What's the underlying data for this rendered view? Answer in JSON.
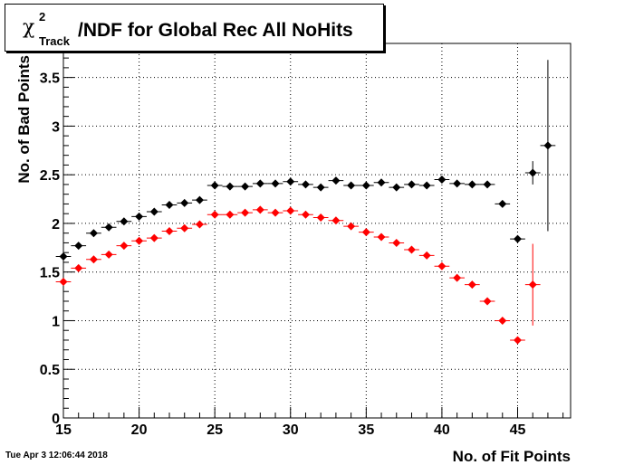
{
  "title": {
    "chi_symbol": "χ",
    "superscript": "2",
    "subscript": "Track",
    "text": "/NDF for Global Rec All NoHits"
  },
  "timestamp": "Tue Apr  3 12:06:44 2018",
  "chart_data": {
    "type": "scatter",
    "xlabel": "No. of Fit Points",
    "ylabel": "No. of Bad Points",
    "xlim": [
      15,
      48.5
    ],
    "ylim": [
      0,
      3.85
    ],
    "x_ticks": [
      15,
      20,
      25,
      30,
      35,
      40,
      45
    ],
    "y_ticks": [
      0,
      0.5,
      1,
      1.5,
      2,
      2.5,
      3,
      3.5
    ],
    "grid": true,
    "series": [
      {
        "color": "#000000",
        "points": [
          {
            "x": 15,
            "y": 1.66,
            "yerr": 0.0
          },
          {
            "x": 16,
            "y": 1.77,
            "yerr": 0.0
          },
          {
            "x": 17,
            "y": 1.9,
            "yerr": 0.0
          },
          {
            "x": 18,
            "y": 1.96,
            "yerr": 0.0
          },
          {
            "x": 19,
            "y": 2.02,
            "yerr": 0.0
          },
          {
            "x": 20,
            "y": 2.07,
            "yerr": 0.0
          },
          {
            "x": 21,
            "y": 2.12,
            "yerr": 0.0
          },
          {
            "x": 22,
            "y": 2.19,
            "yerr": 0.0
          },
          {
            "x": 23,
            "y": 2.21,
            "yerr": 0.0
          },
          {
            "x": 24,
            "y": 2.24,
            "yerr": 0.0
          },
          {
            "x": 25,
            "y": 2.39,
            "yerr": 0.0
          },
          {
            "x": 26,
            "y": 2.38,
            "yerr": 0.0
          },
          {
            "x": 27,
            "y": 2.38,
            "yerr": 0.0
          },
          {
            "x": 28,
            "y": 2.41,
            "yerr": 0.0
          },
          {
            "x": 29,
            "y": 2.41,
            "yerr": 0.0
          },
          {
            "x": 30,
            "y": 2.43,
            "yerr": 0.0
          },
          {
            "x": 31,
            "y": 2.4,
            "yerr": 0.0
          },
          {
            "x": 32,
            "y": 2.37,
            "yerr": 0.0
          },
          {
            "x": 33,
            "y": 2.44,
            "yerr": 0.0
          },
          {
            "x": 34,
            "y": 2.39,
            "yerr": 0.0
          },
          {
            "x": 35,
            "y": 2.39,
            "yerr": 0.0
          },
          {
            "x": 36,
            "y": 2.42,
            "yerr": 0.0
          },
          {
            "x": 37,
            "y": 2.37,
            "yerr": 0.0
          },
          {
            "x": 38,
            "y": 2.4,
            "yerr": 0.0
          },
          {
            "x": 39,
            "y": 2.39,
            "yerr": 0.0
          },
          {
            "x": 40,
            "y": 2.45,
            "yerr": 0.0
          },
          {
            "x": 41,
            "y": 2.41,
            "yerr": 0.0
          },
          {
            "x": 42,
            "y": 2.4,
            "yerr": 0.0
          },
          {
            "x": 43,
            "y": 2.4,
            "yerr": 0.0
          },
          {
            "x": 44,
            "y": 2.2,
            "yerr": 0.0
          },
          {
            "x": 45,
            "y": 1.84,
            "yerr": 0.0
          },
          {
            "x": 46,
            "y": 2.52,
            "yerr": 0.12
          },
          {
            "x": 47,
            "y": 2.8,
            "yerr": 0.88
          }
        ]
      },
      {
        "color": "#ff0000",
        "points": [
          {
            "x": 15,
            "y": 1.4,
            "yerr": 0.0
          },
          {
            "x": 16,
            "y": 1.54,
            "yerr": 0.0
          },
          {
            "x": 17,
            "y": 1.63,
            "yerr": 0.0
          },
          {
            "x": 18,
            "y": 1.68,
            "yerr": 0.0
          },
          {
            "x": 19,
            "y": 1.77,
            "yerr": 0.0
          },
          {
            "x": 20,
            "y": 1.82,
            "yerr": 0.0
          },
          {
            "x": 21,
            "y": 1.85,
            "yerr": 0.0
          },
          {
            "x": 22,
            "y": 1.92,
            "yerr": 0.0
          },
          {
            "x": 23,
            "y": 1.95,
            "yerr": 0.0
          },
          {
            "x": 24,
            "y": 1.99,
            "yerr": 0.0
          },
          {
            "x": 25,
            "y": 2.09,
            "yerr": 0.0
          },
          {
            "x": 26,
            "y": 2.09,
            "yerr": 0.0
          },
          {
            "x": 27,
            "y": 2.11,
            "yerr": 0.0
          },
          {
            "x": 28,
            "y": 2.14,
            "yerr": 0.0
          },
          {
            "x": 29,
            "y": 2.11,
            "yerr": 0.0
          },
          {
            "x": 30,
            "y": 2.13,
            "yerr": 0.0
          },
          {
            "x": 31,
            "y": 2.09,
            "yerr": 0.0
          },
          {
            "x": 32,
            "y": 2.06,
            "yerr": 0.0
          },
          {
            "x": 33,
            "y": 2.03,
            "yerr": 0.0
          },
          {
            "x": 34,
            "y": 1.97,
            "yerr": 0.0
          },
          {
            "x": 35,
            "y": 1.91,
            "yerr": 0.0
          },
          {
            "x": 36,
            "y": 1.86,
            "yerr": 0.0
          },
          {
            "x": 37,
            "y": 1.8,
            "yerr": 0.0
          },
          {
            "x": 38,
            "y": 1.73,
            "yerr": 0.0
          },
          {
            "x": 39,
            "y": 1.67,
            "yerr": 0.0
          },
          {
            "x": 40,
            "y": 1.56,
            "yerr": 0.0
          },
          {
            "x": 41,
            "y": 1.44,
            "yerr": 0.0
          },
          {
            "x": 42,
            "y": 1.37,
            "yerr": 0.0
          },
          {
            "x": 43,
            "y": 1.2,
            "yerr": 0.0
          },
          {
            "x": 44,
            "y": 1.0,
            "yerr": 0.0
          },
          {
            "x": 45,
            "y": 0.8,
            "yerr": 0.0
          },
          {
            "x": 46,
            "y": 1.37,
            "yerr": 0.42
          }
        ]
      }
    ]
  }
}
